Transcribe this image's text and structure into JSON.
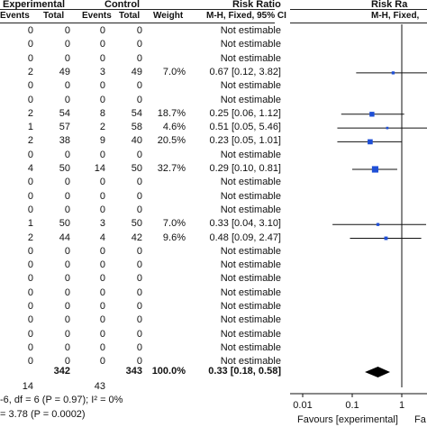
{
  "header": {
    "group_experimental": "Experimental",
    "group_control": "Control",
    "risk_ratio": "Risk Ratio",
    "risk_ratio_plot": "Risk Ra",
    "col_events_exp": "Events",
    "col_total_exp": "Total",
    "col_events_ctl": "Events",
    "col_total_ctl": "Total",
    "col_weight": "Weight",
    "col_method": "M-H, Fixed, 95% CI",
    "col_method_plot": "M-H, Fixed,"
  },
  "rows": [
    {
      "e_ev": "0",
      "e_tot": "0",
      "c_ev": "0",
      "c_tot": "0",
      "weight": "",
      "ci": "Not estimable"
    },
    {
      "e_ev": "0",
      "e_tot": "0",
      "c_ev": "0",
      "c_tot": "0",
      "weight": "",
      "ci": "Not estimable"
    },
    {
      "e_ev": "0",
      "e_tot": "0",
      "c_ev": "0",
      "c_tot": "0",
      "weight": "",
      "ci": "Not estimable"
    },
    {
      "e_ev": "2",
      "e_tot": "49",
      "c_ev": "3",
      "c_tot": "49",
      "weight": "7.0%",
      "ci": "0.67 [0.12, 3.82]"
    },
    {
      "e_ev": "0",
      "e_tot": "0",
      "c_ev": "0",
      "c_tot": "0",
      "weight": "",
      "ci": "Not estimable"
    },
    {
      "e_ev": "0",
      "e_tot": "0",
      "c_ev": "0",
      "c_tot": "0",
      "weight": "",
      "ci": "Not estimable"
    },
    {
      "e_ev": "2",
      "e_tot": "54",
      "c_ev": "8",
      "c_tot": "54",
      "weight": "18.7%",
      "ci": "0.25 [0.06, 1.12]"
    },
    {
      "e_ev": "1",
      "e_tot": "57",
      "c_ev": "2",
      "c_tot": "58",
      "weight": "4.6%",
      "ci": "0.51 [0.05, 5.46]"
    },
    {
      "e_ev": "2",
      "e_tot": "38",
      "c_ev": "9",
      "c_tot": "40",
      "weight": "20.5%",
      "ci": "0.23 [0.05, 1.01]"
    },
    {
      "e_ev": "0",
      "e_tot": "0",
      "c_ev": "0",
      "c_tot": "0",
      "weight": "",
      "ci": "Not estimable"
    },
    {
      "e_ev": "4",
      "e_tot": "50",
      "c_ev": "14",
      "c_tot": "50",
      "weight": "32.7%",
      "ci": "0.29 [0.10, 0.81]"
    },
    {
      "e_ev": "0",
      "e_tot": "0",
      "c_ev": "0",
      "c_tot": "0",
      "weight": "",
      "ci": "Not estimable"
    },
    {
      "e_ev": "0",
      "e_tot": "0",
      "c_ev": "0",
      "c_tot": "0",
      "weight": "",
      "ci": "Not estimable"
    },
    {
      "e_ev": "0",
      "e_tot": "0",
      "c_ev": "0",
      "c_tot": "0",
      "weight": "",
      "ci": "Not estimable"
    },
    {
      "e_ev": "1",
      "e_tot": "50",
      "c_ev": "3",
      "c_tot": "50",
      "weight": "7.0%",
      "ci": "0.33 [0.04, 3.10]"
    },
    {
      "e_ev": "2",
      "e_tot": "44",
      "c_ev": "4",
      "c_tot": "42",
      "weight": "9.6%",
      "ci": "0.48 [0.09, 2.47]"
    },
    {
      "e_ev": "0",
      "e_tot": "0",
      "c_ev": "0",
      "c_tot": "0",
      "weight": "",
      "ci": "Not estimable"
    },
    {
      "e_ev": "0",
      "e_tot": "0",
      "c_ev": "0",
      "c_tot": "0",
      "weight": "",
      "ci": "Not estimable"
    },
    {
      "e_ev": "0",
      "e_tot": "0",
      "c_ev": "0",
      "c_tot": "0",
      "weight": "",
      "ci": "Not estimable"
    },
    {
      "e_ev": "0",
      "e_tot": "0",
      "c_ev": "0",
      "c_tot": "0",
      "weight": "",
      "ci": "Not estimable"
    },
    {
      "e_ev": "0",
      "e_tot": "0",
      "c_ev": "0",
      "c_tot": "0",
      "weight": "",
      "ci": "Not estimable"
    },
    {
      "e_ev": "0",
      "e_tot": "0",
      "c_ev": "0",
      "c_tot": "0",
      "weight": "",
      "ci": "Not estimable"
    },
    {
      "e_ev": "0",
      "e_tot": "0",
      "c_ev": "0",
      "c_tot": "0",
      "weight": "",
      "ci": "Not estimable"
    },
    {
      "e_ev": "0",
      "e_tot": "0",
      "c_ev": "0",
      "c_tot": "0",
      "weight": "",
      "ci": "Not estimable"
    },
    {
      "e_ev": "0",
      "e_tot": "0",
      "c_ev": "0",
      "c_tot": "0",
      "weight": "",
      "ci": "Not estimable"
    }
  ],
  "total": {
    "e_tot": "342",
    "c_tot": "343",
    "weight": "100.0%",
    "ci": "0.33 [0.18, 0.58]",
    "e_events": "14",
    "c_events": "43"
  },
  "footer": {
    "heterogeneity": "-6, df = 6 (P = 0.97); I² = 0%",
    "overall_effect": "= 3.78 (P = 0.0002)",
    "favours_left": "Favours [experimental]",
    "favours_right": "Fa"
  },
  "chart_data": {
    "type": "forest",
    "x_scale": "log",
    "xlim": [
      0.01,
      100
    ],
    "tick_labels": [
      "0.01",
      "0.1",
      "1"
    ],
    "tick_values": [
      0.01,
      0.1,
      1
    ],
    "reference_line": 1,
    "studies": [
      {
        "rr": 0.67,
        "lo": 0.12,
        "hi": 3.82,
        "weight": 7.0
      },
      {
        "rr": 0.25,
        "lo": 0.06,
        "hi": 1.12,
        "weight": 18.7
      },
      {
        "rr": 0.51,
        "lo": 0.05,
        "hi": 5.46,
        "weight": 4.6
      },
      {
        "rr": 0.23,
        "lo": 0.05,
        "hi": 1.01,
        "weight": 20.5
      },
      {
        "rr": 0.29,
        "lo": 0.1,
        "hi": 0.81,
        "weight": 32.7
      },
      {
        "rr": 0.33,
        "lo": 0.04,
        "hi": 3.1,
        "weight": 7.0
      },
      {
        "rr": 0.48,
        "lo": 0.09,
        "hi": 2.47,
        "weight": 9.6
      }
    ],
    "pooled": {
      "rr": 0.33,
      "lo": 0.18,
      "hi": 0.58
    },
    "colors": {
      "marker": "#1f4fd6",
      "line": "#111111",
      "diamond": "#000000"
    }
  }
}
